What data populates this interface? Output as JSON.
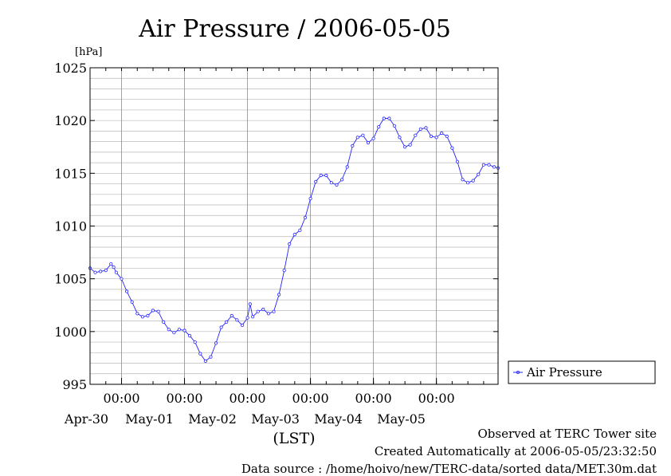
{
  "chart_data": {
    "type": "line",
    "title": "Air Pressure / 2006-05-05",
    "ylabel": "[hPa]",
    "xlabel": "(LST)",
    "ylim": [
      995,
      1025
    ],
    "yticks": [
      995,
      1000,
      1005,
      1010,
      1015,
      1020,
      1025
    ],
    "xlim": [
      "2006-04-29T12:00",
      "2006-05-05T23:30"
    ],
    "x_ticks": [
      {
        "x": "2006-04-30T00:00",
        "time_label": "00:00",
        "date_label": "Apr-30"
      },
      {
        "x": "2006-05-01T00:00",
        "time_label": "00:00",
        "date_label": "May-01"
      },
      {
        "x": "2006-05-02T00:00",
        "time_label": "00:00",
        "date_label": "May-02"
      },
      {
        "x": "2006-05-03T00:00",
        "time_label": "00:00",
        "date_label": "May-03"
      },
      {
        "x": "2006-05-04T00:00",
        "time_label": "00:00",
        "date_label": "May-04"
      },
      {
        "x": "2006-05-05T00:00",
        "time_label": "00:00",
        "date_label": "May-05"
      }
    ],
    "grid": true,
    "legend_position": "right",
    "series": [
      {
        "name": "Air Pressure",
        "color": "#2222ff",
        "marker": "circle",
        "points": [
          [
            "2006-04-29T12:00",
            1006.0
          ],
          [
            "2006-04-29T14:00",
            1005.6
          ],
          [
            "2006-04-29T16:00",
            1005.7
          ],
          [
            "2006-04-29T18:00",
            1005.8
          ],
          [
            "2006-04-29T20:00",
            1006.4
          ],
          [
            "2006-04-29T21:00",
            1006.1
          ],
          [
            "2006-04-29T22:00",
            1005.6
          ],
          [
            "2006-04-30T00:00",
            1005.0
          ],
          [
            "2006-04-30T02:00",
            1003.8
          ],
          [
            "2006-04-30T04:00",
            1002.8
          ],
          [
            "2006-04-30T06:00",
            1001.7
          ],
          [
            "2006-04-30T08:00",
            1001.4
          ],
          [
            "2006-04-30T10:00",
            1001.5
          ],
          [
            "2006-04-30T12:00",
            1002.0
          ],
          [
            "2006-04-30T14:00",
            1001.9
          ],
          [
            "2006-04-30T16:00",
            1000.9
          ],
          [
            "2006-04-30T18:00",
            1000.2
          ],
          [
            "2006-04-30T20:00",
            999.9
          ],
          [
            "2006-04-30T22:00",
            1000.2
          ],
          [
            "2006-05-01T00:00",
            1000.1
          ],
          [
            "2006-05-01T02:00",
            999.6
          ],
          [
            "2006-05-01T04:00",
            999.0
          ],
          [
            "2006-05-01T06:00",
            997.9
          ],
          [
            "2006-05-01T08:00",
            997.2
          ],
          [
            "2006-05-01T10:00",
            997.6
          ],
          [
            "2006-05-01T12:00",
            998.9
          ],
          [
            "2006-05-01T14:00",
            1000.4
          ],
          [
            "2006-05-01T16:00",
            1000.9
          ],
          [
            "2006-05-01T18:00",
            1001.5
          ],
          [
            "2006-05-01T20:00",
            1001.1
          ],
          [
            "2006-05-01T22:00",
            1000.6
          ],
          [
            "2006-05-02T00:00",
            1001.3
          ],
          [
            "2006-05-02T01:00",
            1002.6
          ],
          [
            "2006-05-02T02:00",
            1001.4
          ],
          [
            "2006-05-02T04:00",
            1001.9
          ],
          [
            "2006-05-02T06:00",
            1002.1
          ],
          [
            "2006-05-02T08:00",
            1001.7
          ],
          [
            "2006-05-02T10:00",
            1001.9
          ],
          [
            "2006-05-02T12:00",
            1003.5
          ],
          [
            "2006-05-02T14:00",
            1005.8
          ],
          [
            "2006-05-02T16:00",
            1008.3
          ],
          [
            "2006-05-02T18:00",
            1009.2
          ],
          [
            "2006-05-02T20:00",
            1009.6
          ],
          [
            "2006-05-02T22:00",
            1010.8
          ],
          [
            "2006-05-03T00:00",
            1012.6
          ],
          [
            "2006-05-03T02:00",
            1014.2
          ],
          [
            "2006-05-03T04:00",
            1014.8
          ],
          [
            "2006-05-03T06:00",
            1014.8
          ],
          [
            "2006-05-03T08:00",
            1014.1
          ],
          [
            "2006-05-03T10:00",
            1013.9
          ],
          [
            "2006-05-03T12:00",
            1014.4
          ],
          [
            "2006-05-03T14:00",
            1015.6
          ],
          [
            "2006-05-03T16:00",
            1017.6
          ],
          [
            "2006-05-03T18:00",
            1018.4
          ],
          [
            "2006-05-03T20:00",
            1018.6
          ],
          [
            "2006-05-03T22:00",
            1017.9
          ],
          [
            "2006-05-04T00:00",
            1018.3
          ],
          [
            "2006-05-04T02:00",
            1019.4
          ],
          [
            "2006-05-04T04:00",
            1020.2
          ],
          [
            "2006-05-04T06:00",
            1020.2
          ],
          [
            "2006-05-04T08:00",
            1019.5
          ],
          [
            "2006-05-04T10:00",
            1018.4
          ],
          [
            "2006-05-04T12:00",
            1017.5
          ],
          [
            "2006-05-04T14:00",
            1017.7
          ],
          [
            "2006-05-04T16:00",
            1018.6
          ],
          [
            "2006-05-04T18:00",
            1019.2
          ],
          [
            "2006-05-04T20:00",
            1019.3
          ],
          [
            "2006-05-04T22:00",
            1018.5
          ],
          [
            "2006-05-05T00:00",
            1018.4
          ],
          [
            "2006-05-05T02:00",
            1018.8
          ],
          [
            "2006-05-05T04:00",
            1018.5
          ],
          [
            "2006-05-05T06:00",
            1017.4
          ],
          [
            "2006-05-05T08:00",
            1016.1
          ],
          [
            "2006-05-05T10:00",
            1014.4
          ],
          [
            "2006-05-05T12:00",
            1014.1
          ],
          [
            "2006-05-05T14:00",
            1014.3
          ],
          [
            "2006-05-05T16:00",
            1014.9
          ],
          [
            "2006-05-05T18:00",
            1015.8
          ],
          [
            "2006-05-05T20:00",
            1015.8
          ],
          [
            "2006-05-05T22:00",
            1015.6
          ],
          [
            "2006-05-05T23:30",
            1015.5
          ]
        ]
      }
    ]
  },
  "footer": {
    "observed": "Observed at TERC Tower site",
    "created": "Created Automatically at 2006-05-05/23:32:50",
    "source": "Data source : /home/hoivo/new/TERC-data/sorted  data/MET.30m.dat"
  }
}
